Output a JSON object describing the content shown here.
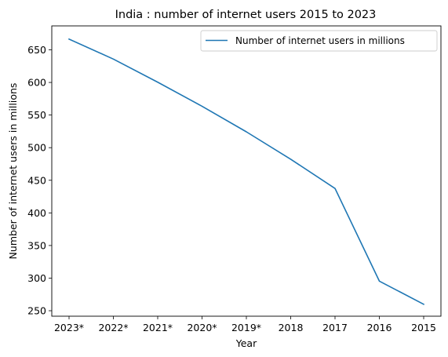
{
  "chart_data": {
    "type": "line",
    "title": "India : number of internet users 2015 to 2023",
    "xlabel": "Year",
    "ylabel": "Number of internet users in millions",
    "categories": [
      "2023*",
      "2022*",
      "2021*",
      "2020*",
      "2019*",
      "2018",
      "2017",
      "2016",
      "2015"
    ],
    "series": [
      {
        "name": "Number of internet users in millions",
        "color": "#1f77b4",
        "values": [
          666.4,
          635.8,
          600.4,
          563.5,
          524.3,
          482.3,
          437.5,
          295.4,
          259.9
        ]
      }
    ],
    "yticks": [
      250,
      300,
      350,
      400,
      450,
      500,
      550,
      600,
      650
    ],
    "ylim": [
      241.6,
      686.7
    ],
    "grid": false,
    "legend": "top-right"
  }
}
